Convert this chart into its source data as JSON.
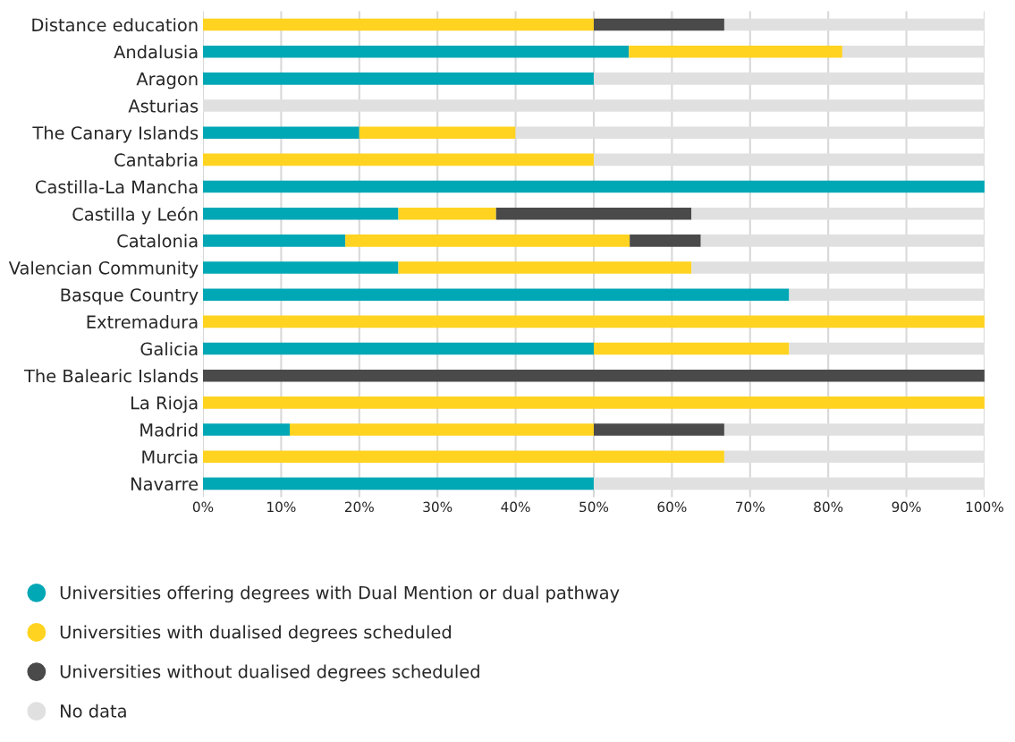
{
  "chart_data": {
    "type": "bar",
    "orientation": "horizontal",
    "stacked": true,
    "categories": [
      "Distance education",
      "Andalusia",
      "Aragon",
      "Asturias",
      "The Canary Islands",
      "Cantabria",
      "Castilla-La Mancha",
      "Castilla y León",
      "Catalonia",
      "Valencian Community",
      "Basque Country",
      "Extremadura",
      "Galicia",
      "The Balearic Islands",
      "La Rioja",
      "Madrid",
      "Murcia",
      "Navarre"
    ],
    "series": [
      {
        "name": "Universities offering degrees with Dual Mention or dual pathway",
        "color": "#00a7b5",
        "values": [
          0,
          54.5,
          50,
          0,
          20,
          0,
          100,
          25,
          18.2,
          25,
          75,
          0,
          50,
          0,
          0,
          11.1,
          0,
          50
        ]
      },
      {
        "name": "Universities with dualised degrees scheduled",
        "color": "#ffd320",
        "values": [
          50,
          27.3,
          0,
          0,
          20,
          50,
          0,
          12.5,
          36.4,
          37.5,
          0,
          100,
          25,
          0,
          100,
          38.9,
          66.7,
          0
        ]
      },
      {
        "name": "Universities without dualised degrees scheduled",
        "color": "#4a4a4a",
        "values": [
          16.7,
          0,
          0,
          0,
          0,
          0,
          0,
          25,
          9.1,
          0,
          0,
          0,
          0,
          100,
          0,
          16.7,
          0,
          0
        ]
      },
      {
        "name": "No data",
        "color": "#e0e0e0",
        "values": [
          33.3,
          18.2,
          50,
          100,
          60,
          50,
          0,
          37.5,
          36.4,
          37.5,
          25,
          0,
          25,
          0,
          0,
          33.3,
          33.3,
          50
        ]
      }
    ],
    "xlim": [
      0,
      100
    ],
    "xticks": [
      {
        "value": 0,
        "label": "0%"
      },
      {
        "value": 10,
        "label": "10%"
      },
      {
        "value": 20,
        "label": "20%"
      },
      {
        "value": 30,
        "label": "30%"
      },
      {
        "value": 40,
        "label": "40%"
      },
      {
        "value": 50,
        "label": "50%"
      },
      {
        "value": 60,
        "label": "60%"
      },
      {
        "value": 70,
        "label": "70%"
      },
      {
        "value": 80,
        "label": "80%"
      },
      {
        "value": 90,
        "label": "90%"
      },
      {
        "value": 100,
        "label": "100%"
      }
    ],
    "grid": "x",
    "legend": "bottom"
  }
}
